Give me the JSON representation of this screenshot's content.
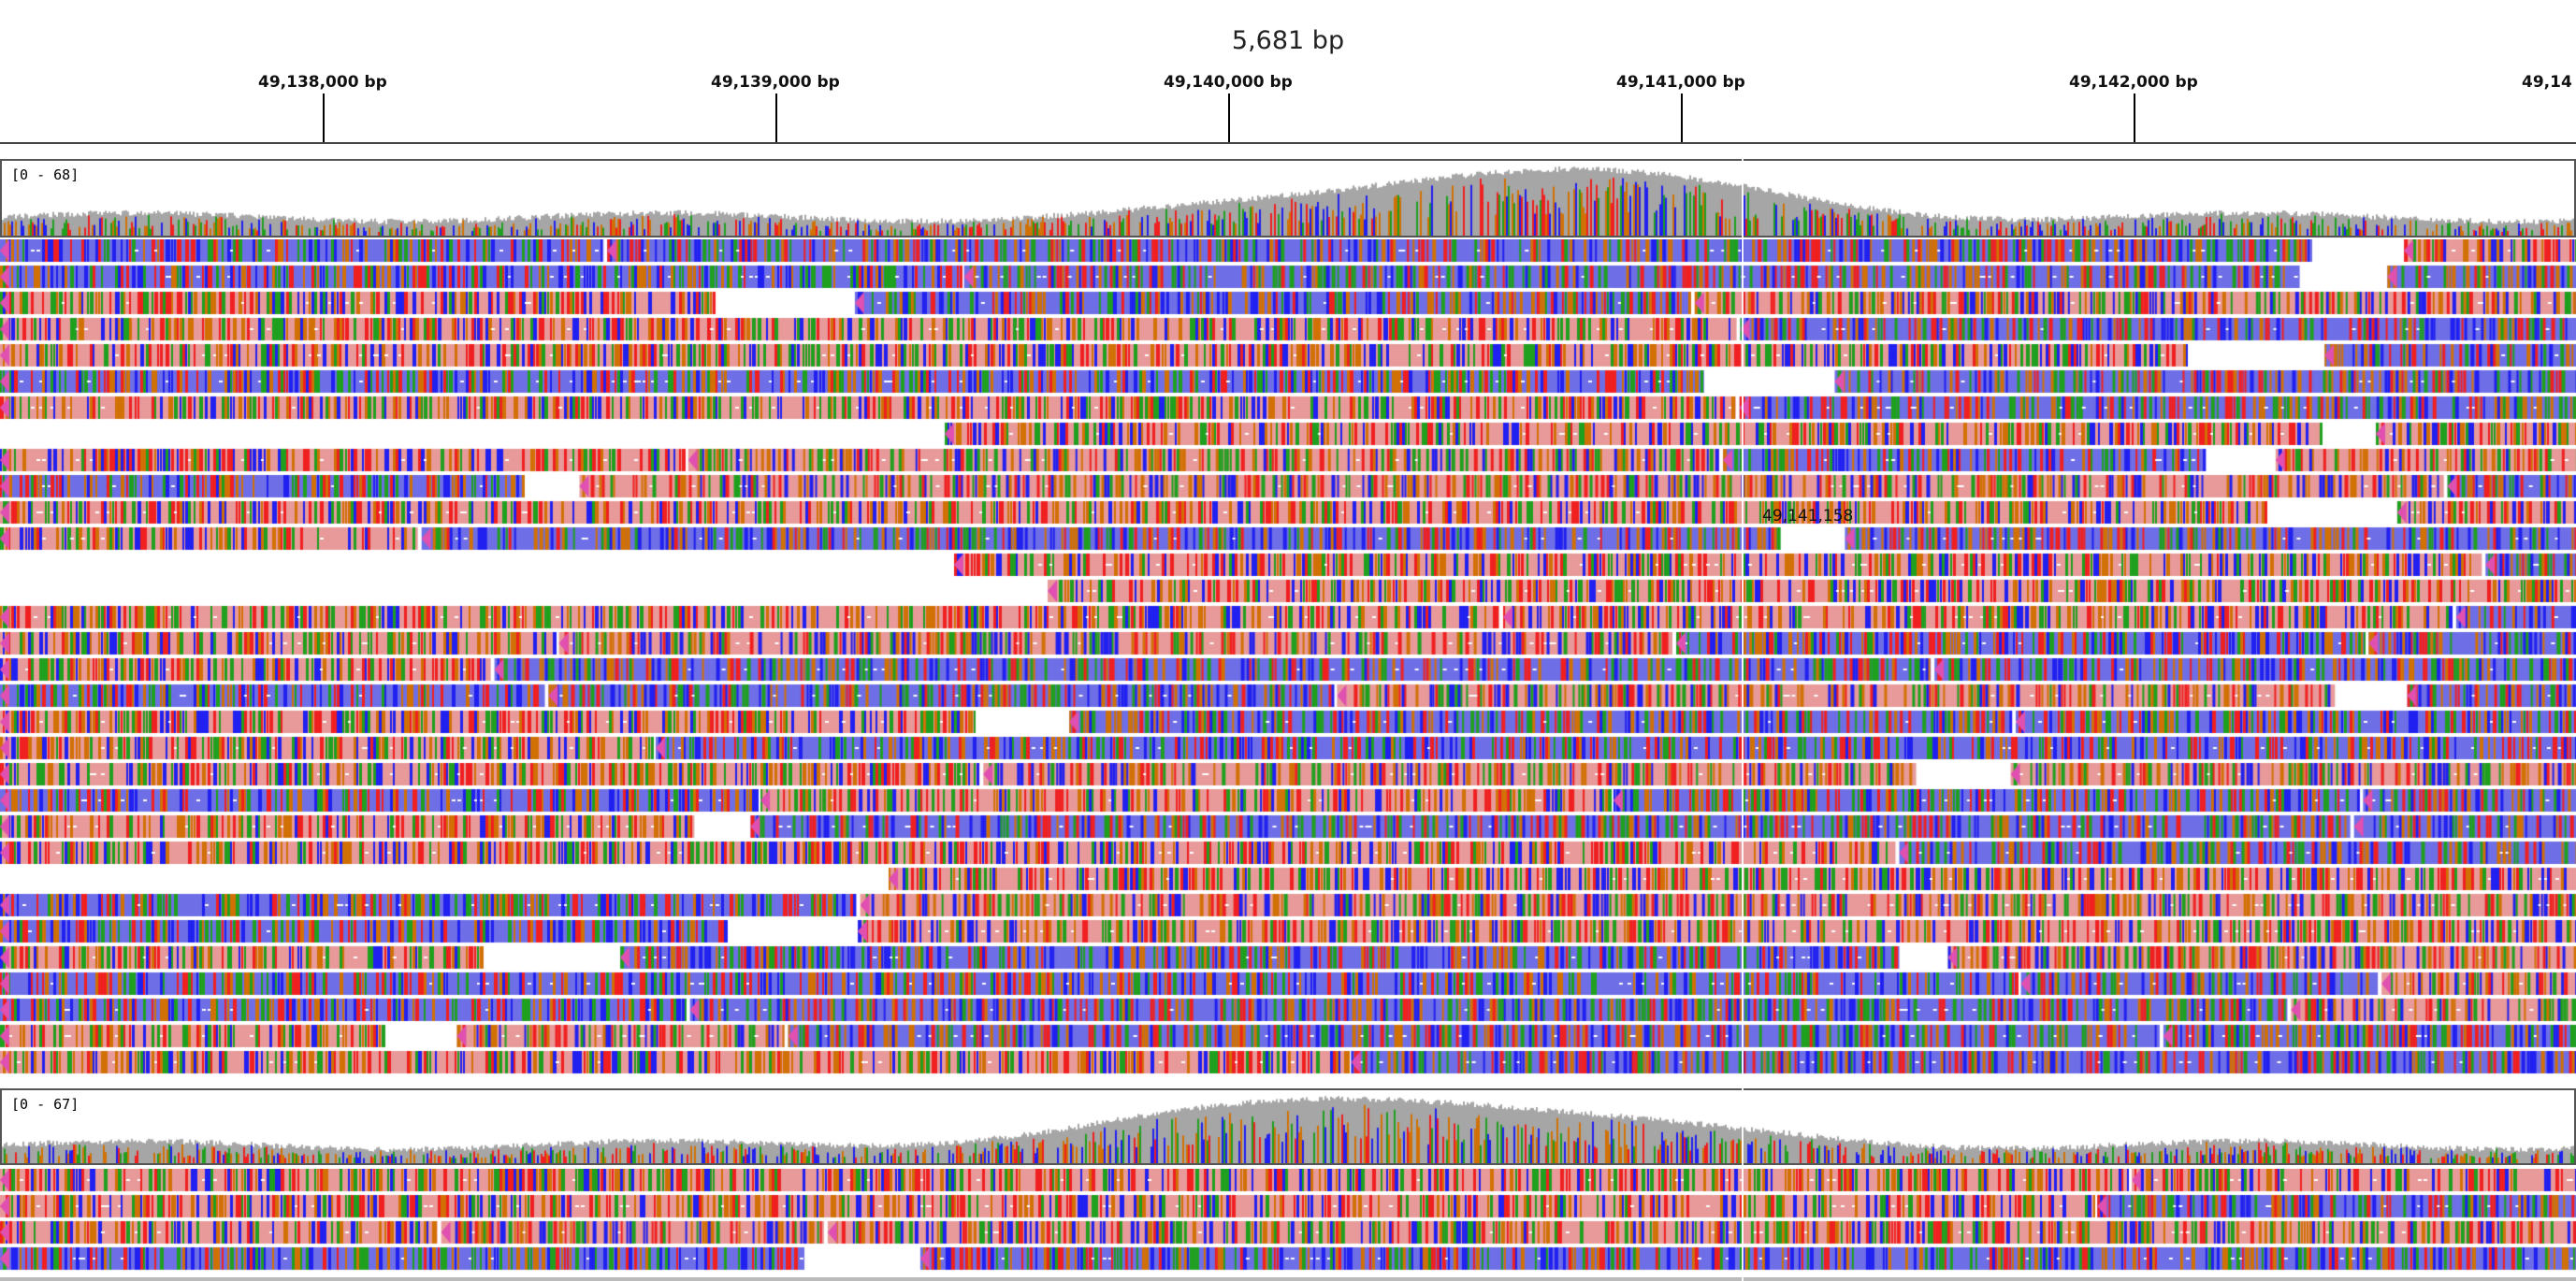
{
  "ruler": {
    "span": "5,681 bp",
    "ticks": [
      "49,138,000 bp",
      "49,139,000 bp",
      "49,140,000 bp",
      "49,141,000 bp",
      "49,142,000 bp",
      "49,14"
    ]
  },
  "tracks": [
    {
      "coverage_range": "[0 - 68]"
    },
    {
      "coverage_range": "[0 - 67]"
    }
  ],
  "center_position": "49,141,158",
  "colors": {
    "coverage_gray": "#a6a6a6",
    "base_A": "#1fa01f",
    "base_C": "#2020f0",
    "base_G": "#d17105",
    "base_T": "#f02020",
    "read_blue": "#6e6ee6",
    "read_pink": "#e89a9a",
    "strand_marker": "#e050b0"
  }
}
